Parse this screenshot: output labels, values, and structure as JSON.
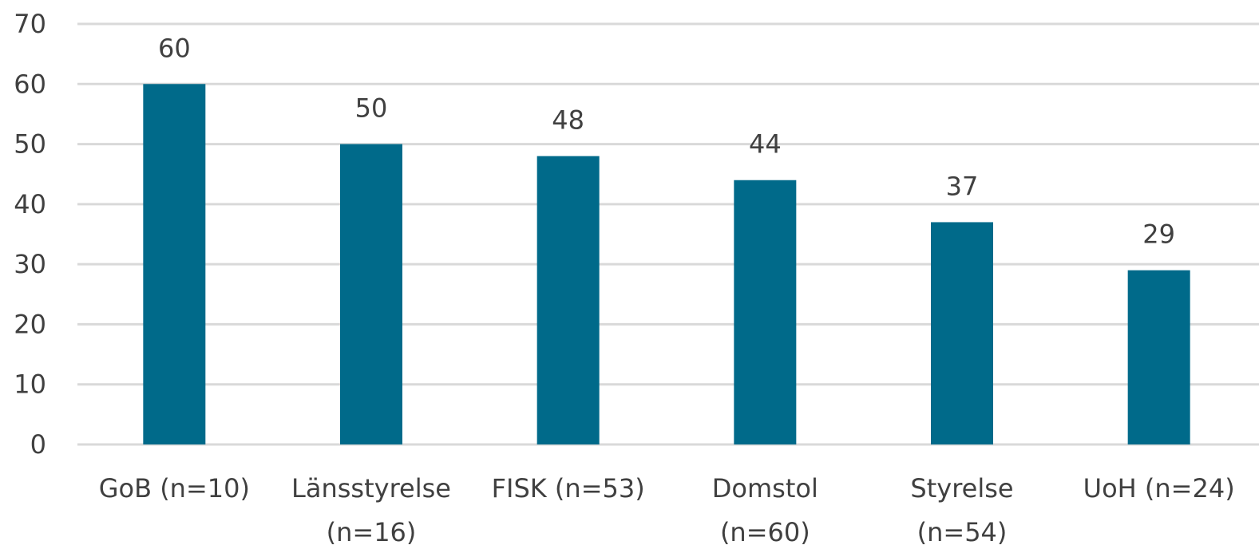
{
  "chart_data": {
    "type": "bar",
    "title": "",
    "xlabel": "",
    "ylabel": "",
    "ylim": [
      0,
      70
    ],
    "yticks": [
      0,
      10,
      20,
      30,
      40,
      50,
      60,
      70
    ],
    "grid": true,
    "legend": "none",
    "categories": [
      [
        "GoB (n=10)"
      ],
      [
        "Länsstyrelse",
        "(n=16)"
      ],
      [
        "FISK (n=53)"
      ],
      [
        "Domstol",
        "(n=60)"
      ],
      [
        "Styrelse",
        "(n=54)"
      ],
      [
        "UoH (n=24)"
      ]
    ],
    "values": [
      60,
      50,
      48,
      44,
      37,
      29
    ],
    "data_labels": [
      "60",
      "50",
      "48",
      "44",
      "37",
      "29"
    ],
    "colors": {
      "bar": "#006a8a",
      "grid": "#d9d9d9",
      "text": "#404040"
    }
  }
}
